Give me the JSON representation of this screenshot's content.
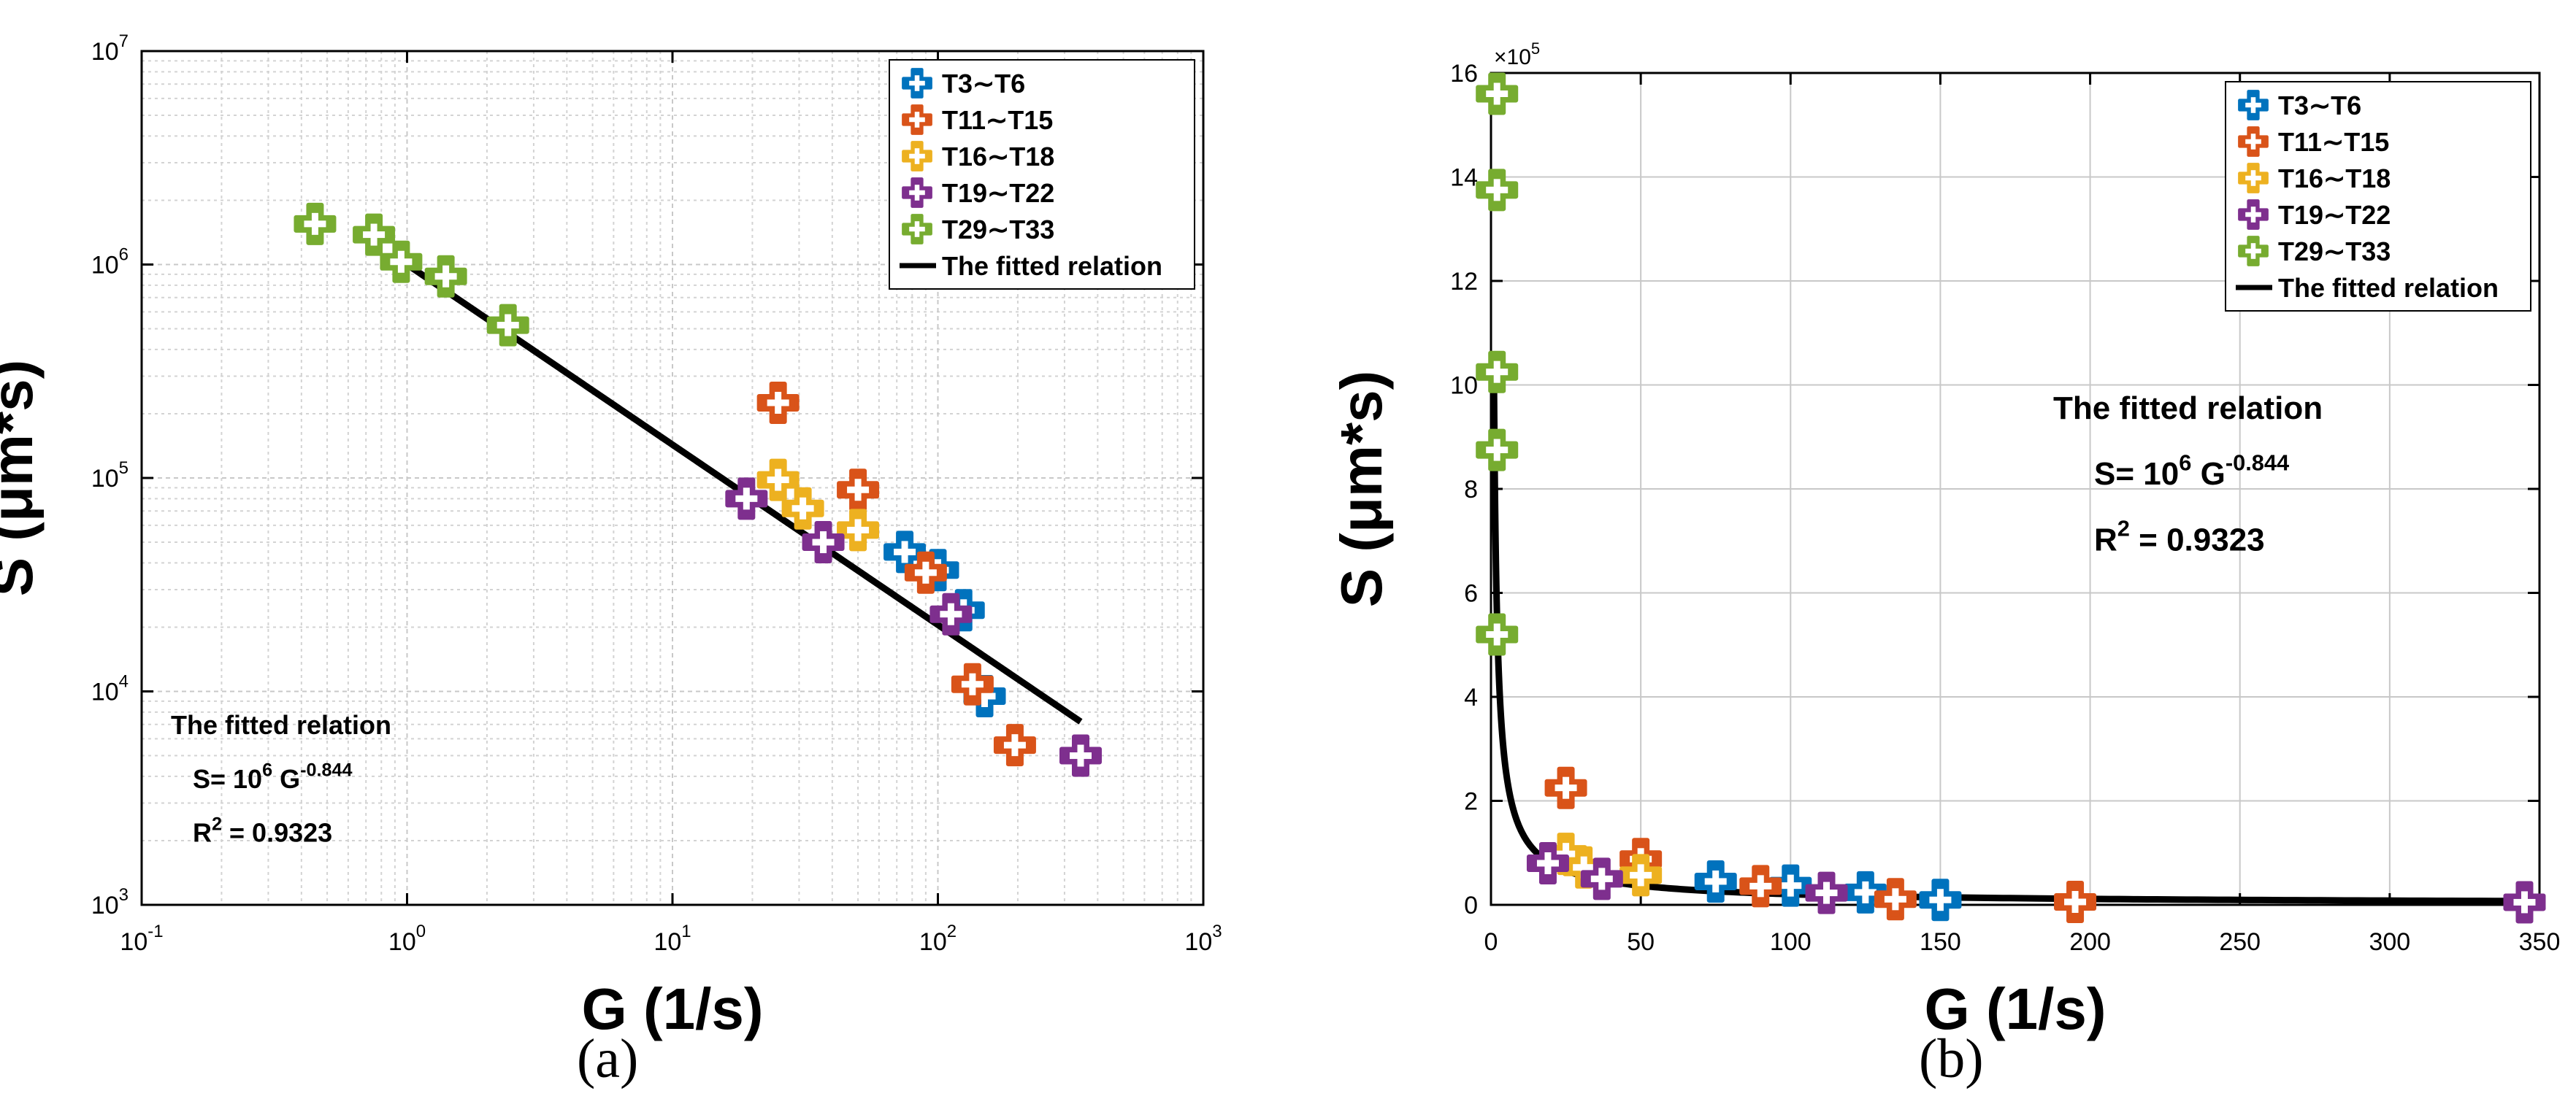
{
  "panels": {
    "a": {
      "label": "(a)"
    },
    "b": {
      "label": "(b)"
    }
  },
  "chart_data": [
    {
      "type": "scatter",
      "panel": "a",
      "xscale": "log",
      "yscale": "log",
      "xlabel": "G (1/s)",
      "ylabel": "S (μm*s)",
      "xlim": [
        0.1,
        1000
      ],
      "ylim": [
        1000,
        10000000
      ],
      "xticks": [
        0.1,
        1,
        10,
        100,
        1000
      ],
      "xtick_labels": [
        [
          "10",
          "-1"
        ],
        [
          "10",
          "0"
        ],
        [
          "10",
          "1"
        ],
        [
          "10",
          "2"
        ],
        [
          "10",
          "3"
        ]
      ],
      "yticks": [
        1000,
        10000,
        100000,
        1000000,
        10000000
      ],
      "ytick_labels": [
        [
          "10",
          "3"
        ],
        [
          "10",
          "4"
        ],
        [
          "10",
          "5"
        ],
        [
          "10",
          "6"
        ],
        [
          "10",
          "7"
        ]
      ],
      "grid": true,
      "minor_grid": true,
      "legend_position": "top-right",
      "series": [
        {
          "name": "T3∼T6",
          "color": "#0072BD",
          "points": [
            [
              75,
              45000
            ],
            [
              100,
              37000
            ],
            [
              125,
              24000
            ],
            [
              150,
              9500
            ]
          ]
        },
        {
          "name": "T11∼T15",
          "color": "#D95319",
          "points": [
            [
              25,
              225000
            ],
            [
              50,
              88000
            ],
            [
              90,
              36000
            ],
            [
              135,
              10800
            ],
            [
              195,
              5600
            ]
          ]
        },
        {
          "name": "T16∼T18",
          "color": "#EDB120",
          "points": [
            [
              25,
              98000
            ],
            [
              31,
              72000
            ],
            [
              50,
              57000
            ]
          ]
        },
        {
          "name": "T19∼T22",
          "color": "#7E2F8E",
          "points": [
            [
              19,
              80000
            ],
            [
              37,
              50000
            ],
            [
              112,
              23000
            ],
            [
              345,
              5000
            ]
          ]
        },
        {
          "name": "T29∼T33",
          "color": "#77AC30",
          "points": [
            [
              0.45,
              1550000
            ],
            [
              0.75,
              1380000
            ],
            [
              0.95,
              1030000
            ],
            [
              1.4,
              880000
            ],
            [
              2.4,
              520000
            ]
          ]
        }
      ],
      "fit": {
        "name": "The fitted relation",
        "coef": 1000000,
        "exponent": -0.844,
        "x_range": [
          1,
          345
        ],
        "color": "#000000"
      },
      "annotation": {
        "title": "The fitted relation",
        "eq_lhs": "S= 10",
        "eq_exp1": "6",
        "eq_mid": " G",
        "eq_exp2": "-0.844",
        "r2_lhs": "R",
        "r2_exp": "2",
        "r2_rhs": " = 0.9323",
        "position": "bottom-left"
      }
    },
    {
      "type": "scatter",
      "panel": "b",
      "xscale": "linear",
      "yscale": "linear",
      "xlabel": "G (1/s)",
      "ylabel": "S (μm*s)",
      "xlim": [
        0,
        350
      ],
      "ylim": [
        0,
        1600000
      ],
      "xticks": [
        0,
        50,
        100,
        150,
        200,
        250,
        300,
        350
      ],
      "xtick_labels": [
        "0",
        "50",
        "100",
        "150",
        "200",
        "250",
        "300",
        "350"
      ],
      "yticks": [
        0,
        200000,
        400000,
        600000,
        800000,
        1000000,
        1200000,
        1400000,
        1600000
      ],
      "ytick_labels": [
        "0",
        "2",
        "4",
        "6",
        "8",
        "10",
        "12",
        "14",
        "16"
      ],
      "y_multiplier": {
        "base": "×10",
        "exp": "5"
      },
      "grid": true,
      "minor_grid": false,
      "legend_position": "top-right",
      "series": [
        {
          "name": "T3∼T6",
          "color": "#0072BD",
          "points": [
            [
              75,
              45000
            ],
            [
              100,
              37000
            ],
            [
              125,
              24000
            ],
            [
              150,
              9500
            ]
          ]
        },
        {
          "name": "T11∼T15",
          "color": "#D95319",
          "points": [
            [
              25,
              225000
            ],
            [
              50,
              88000
            ],
            [
              90,
              36000
            ],
            [
              135,
              10800
            ],
            [
              195,
              5600
            ]
          ]
        },
        {
          "name": "T16∼T18",
          "color": "#EDB120",
          "points": [
            [
              25,
              98000
            ],
            [
              31,
              72000
            ],
            [
              50,
              57000
            ]
          ]
        },
        {
          "name": "T19∼T22",
          "color": "#7E2F8E",
          "points": [
            [
              19,
              80000
            ],
            [
              37,
              50000
            ],
            [
              112,
              23000
            ],
            [
              345,
              5000
            ]
          ]
        },
        {
          "name": "T29∼T33",
          "color": "#77AC30",
          "points": [
            [
              2,
              1560000
            ],
            [
              2,
              1375000
            ],
            [
              2,
              1025000
            ],
            [
              2,
              875000
            ],
            [
              2,
              520000
            ]
          ]
        }
      ],
      "fit": {
        "name": "The fitted relation",
        "coef": 1000000,
        "exponent": -0.844,
        "x_range": [
          1,
          350
        ],
        "color": "#000000"
      },
      "annotation": {
        "title": "The fitted relation",
        "eq_lhs": "S= 10",
        "eq_exp1": "6",
        "eq_mid": " G",
        "eq_exp2": "-0.844",
        "r2_lhs": "R",
        "r2_exp": "2",
        "r2_rhs": " = 0.9323",
        "position": "upper-right"
      }
    }
  ]
}
